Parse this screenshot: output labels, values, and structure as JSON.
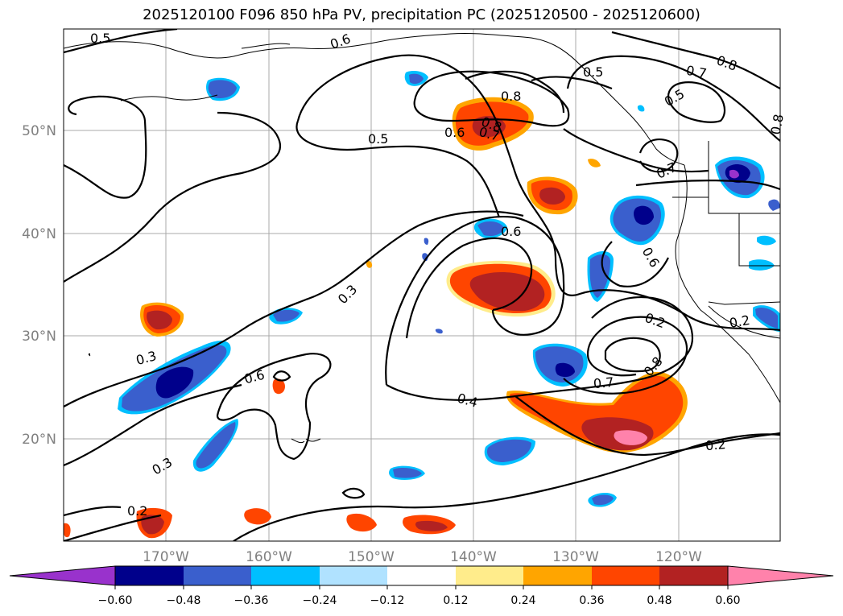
{
  "title": "2025120100 F096 850 hPa PV, precipitation PC (2025120500 - 2025120600)",
  "map": {
    "lat_labels": [
      "50°N",
      "40°N",
      "30°N",
      "20°N"
    ],
    "lon_labels": [
      "170°W",
      "160°W",
      "150°W",
      "140°W",
      "130°W",
      "120°W"
    ],
    "contour_labels": [
      "0.5",
      "0.6",
      "0.8",
      "0.5",
      "0.7",
      "0.8",
      "0.5",
      "0.8",
      "0.8",
      "0.5",
      "0.6",
      "0.7",
      "0.7",
      "0.6",
      "0.6",
      "0.3",
      "0.2",
      "0.3",
      "0.6",
      "0.2",
      "0.8",
      "0.7",
      "0.4",
      "0.2",
      "0.3",
      "0.2"
    ]
  },
  "colorbar": {
    "colors": [
      "#9932cc",
      "#00008b",
      "#3a5fcd",
      "#00bfff",
      "#b0e2ff",
      "#ffffff",
      "#ffec8b",
      "#ffa500",
      "#ff4500",
      "#b22222",
      "#ff82ab"
    ],
    "tick_labels": [
      "−0.60",
      "−0.48",
      "−0.36",
      "−0.24",
      "−0.12",
      "0.12",
      "0.24",
      "0.36",
      "0.48",
      "0.60"
    ]
  }
}
